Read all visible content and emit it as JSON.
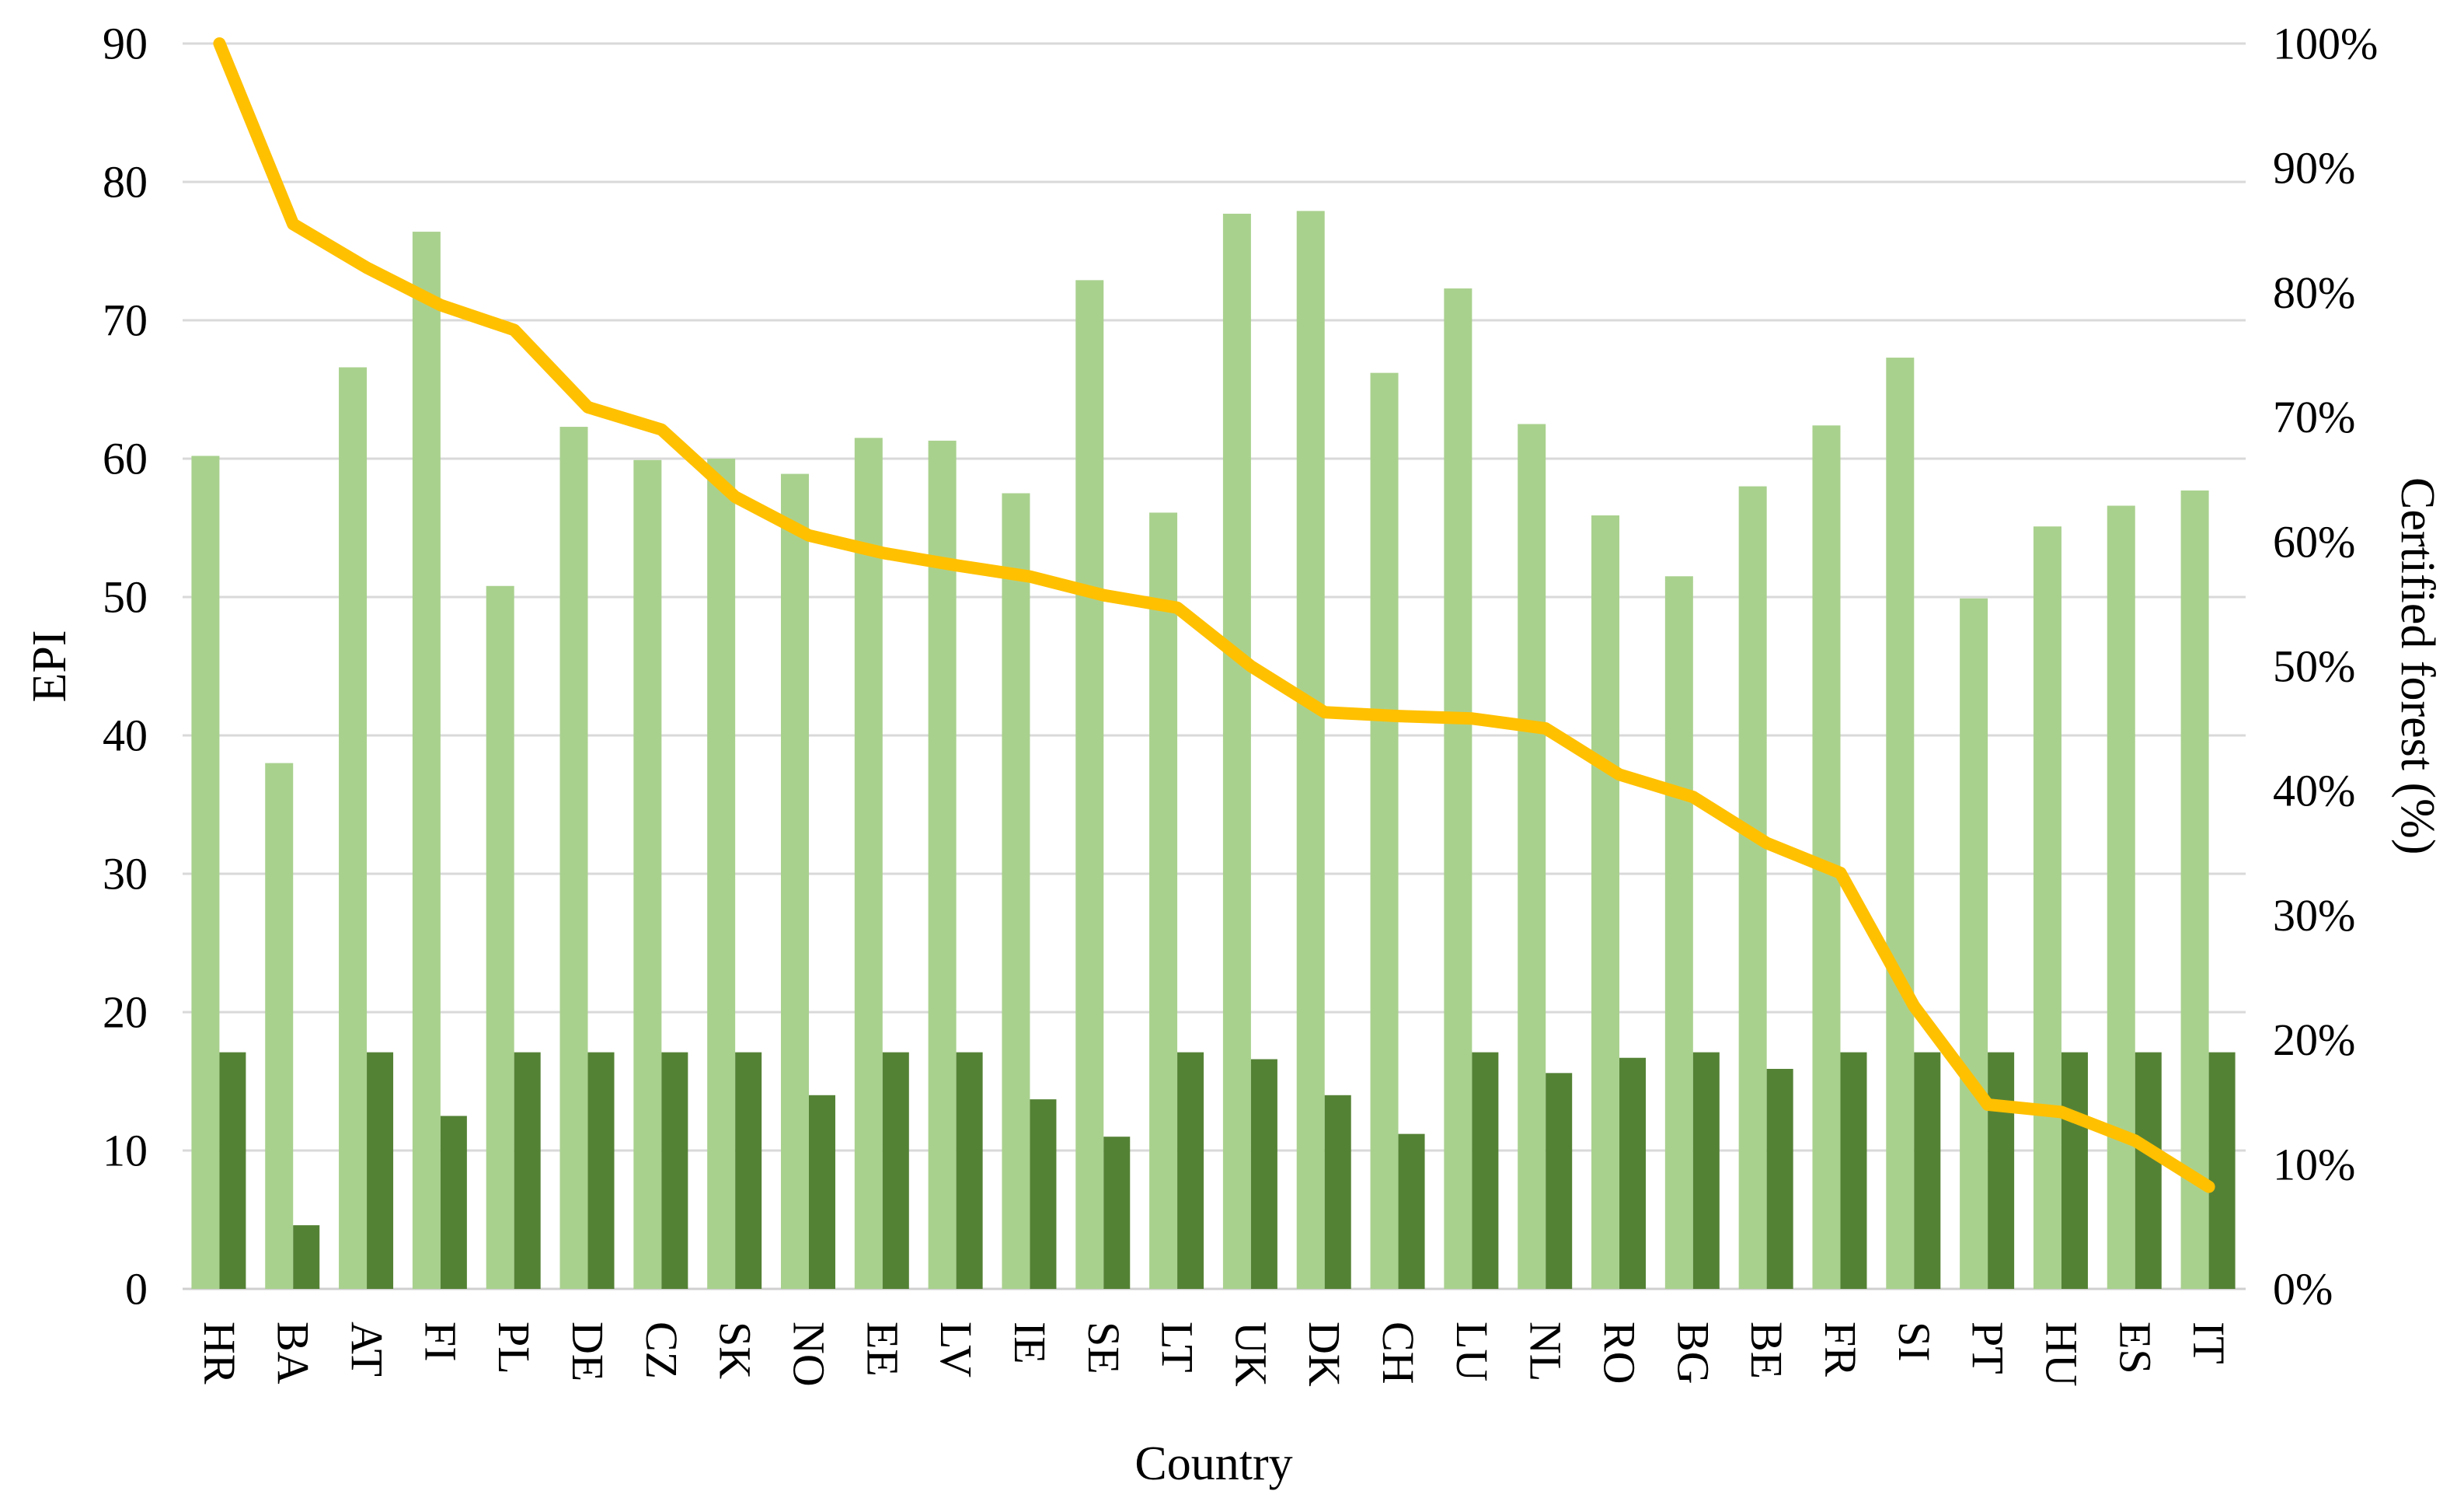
{
  "chart_data": {
    "type": "bar+line combo",
    "title": "",
    "categories": [
      "HR",
      "BA",
      "AT",
      "FI",
      "PL",
      "DE",
      "CZ",
      "SK",
      "NO",
      "EE",
      "LV",
      "IE",
      "SE",
      "LT",
      "UK",
      "DK",
      "CH",
      "LU",
      "NL",
      "RO",
      "BG",
      "BE",
      "FR",
      "SI",
      "PT",
      "HU",
      "ES",
      "IT"
    ],
    "series": [
      {
        "name": "light-green-bar-epi",
        "type": "bar",
        "axis": "left",
        "values": [
          60.2,
          38.0,
          66.6,
          76.4,
          50.8,
          62.3,
          59.9,
          60.0,
          58.9,
          61.5,
          61.3,
          57.5,
          72.9,
          56.1,
          77.7,
          77.9,
          66.2,
          72.3,
          62.5,
          55.9,
          51.5,
          58.0,
          62.4,
          67.3,
          49.9,
          55.1,
          56.6,
          57.7
        ]
      },
      {
        "name": "dark-green-bar",
        "type": "bar",
        "axis": "left",
        "values": [
          17.1,
          4.6,
          17.1,
          12.5,
          17.1,
          17.1,
          17.1,
          17.1,
          14.0,
          17.1,
          17.1,
          13.7,
          11.0,
          17.1,
          16.6,
          14.0,
          11.2,
          17.1,
          15.6,
          16.7,
          17.1,
          15.9,
          17.1,
          17.1,
          17.1,
          17.1,
          17.1,
          17.1
        ]
      },
      {
        "name": "certified-forest-line",
        "type": "line",
        "axis": "right",
        "values": [
          100,
          85.5,
          82.0,
          79.0,
          77.0,
          70.8,
          69.0,
          63.6,
          60.5,
          59.1,
          58.1,
          57.2,
          55.7,
          54.7,
          50.0,
          46.3,
          46.0,
          45.8,
          45.0,
          41.3,
          39.5,
          35.8,
          33.4,
          22.7,
          14.8,
          14.2,
          11.9,
          8.2
        ]
      }
    ],
    "left_axis": {
      "label": "EPI",
      "min": 0,
      "max": 90,
      "tick_step": 10,
      "tick_labels": [
        "0",
        "10",
        "20",
        "30",
        "40",
        "50",
        "60",
        "70",
        "80",
        "90"
      ]
    },
    "right_axis": {
      "label": "Certified forest (%)",
      "min": 0,
      "max": 100,
      "tick_step": 10,
      "tick_labels": [
        "0%",
        "10%",
        "20%",
        "30%",
        "40%",
        "50%",
        "60%",
        "70%",
        "80%",
        "90%",
        "100%"
      ]
    },
    "x_axis": {
      "label": "Country"
    },
    "layout": {
      "grid": "horizontal gridlines at left-axis steps",
      "legend": "none"
    },
    "colors": {
      "light_bar": "#A9D18E",
      "dark_bar": "#548235",
      "line": "#FFC000",
      "gridline": "#D9D9D9",
      "baseline": "#CFCFCF",
      "text": "#000000",
      "background": "#FFFFFF"
    }
  }
}
